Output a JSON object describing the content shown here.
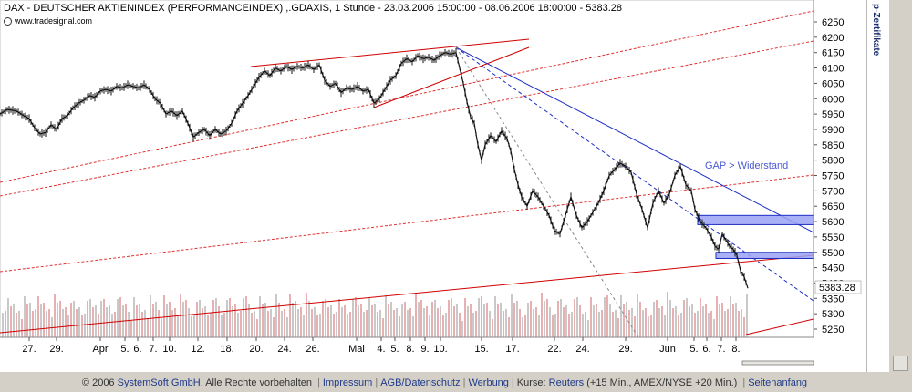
{
  "header": {
    "title": "DAX  - DEUTSCHER AKTIENINDEX (PERFORMANCEINDEX) ,.GDAXIS, 1 Stunde - 23.03.2006 15:00:00 - 08.06.2006 18:00:00 - 5383.28",
    "source": "www.tradesignal.com"
  },
  "side_panel": {
    "label": "p-Zertifikate"
  },
  "footer": {
    "copyright": "© 2006 ",
    "company": "SystemSoft GmbH",
    "rights": ". Alle Rechte vorbehalten ",
    "impressum": "Impressum",
    "agb": "AGB/Datenschutz",
    "werbung": "Werbung",
    "kurse_prefix": "Kurse: ",
    "reuters": "Reuters",
    "delay_note": " (+15 Min., AMEX/NYSE +20 Min.) ",
    "seitenanfang": "Seitenanfang",
    "separator": "|"
  },
  "chart_data": {
    "type": "line",
    "title": "DAX  - DEUTSCHER AKTIENINDEX (PERFORMANCEINDEX) ,.GDAXIS, 1 Stunde - 23.03.2006 15:00:00 - 08.06.2006 18:00:00 - 5383.28",
    "y_ticks": [
      5250,
      5300,
      5350,
      5400,
      5450,
      5500,
      5550,
      5600,
      5650,
      5700,
      5750,
      5800,
      5850,
      5900,
      5950,
      6000,
      6050,
      6100,
      6150,
      6200,
      6250
    ],
    "ylim": [
      5220,
      6290
    ],
    "x_ticks": [
      "27.",
      "29.",
      "Apr",
      "5.",
      "6.",
      "7.",
      "10.",
      "12.",
      "18.",
      "20.",
      "24.",
      "26.",
      "Mai",
      "4.",
      "5.",
      "8.",
      "9.",
      "10.",
      "15.",
      "17.",
      "22.",
      "24.",
      "29.",
      "Jun",
      "5.",
      "6.",
      "7.",
      "8."
    ],
    "last_value_label": "5383.28",
    "price_path": [
      [
        0,
        5950
      ],
      [
        8,
        5965
      ],
      [
        18,
        5960
      ],
      [
        26,
        5945
      ],
      [
        32,
        5935
      ],
      [
        38,
        5905
      ],
      [
        44,
        5885
      ],
      [
        50,
        5890
      ],
      [
        56,
        5915
      ],
      [
        62,
        5900
      ],
      [
        68,
        5935
      ],
      [
        74,
        5945
      ],
      [
        80,
        5970
      ],
      [
        86,
        5985
      ],
      [
        92,
        5995
      ],
      [
        98,
        6010
      ],
      [
        104,
        6005
      ],
      [
        110,
        6025
      ],
      [
        116,
        6030
      ],
      [
        122,
        6025
      ],
      [
        128,
        6040
      ],
      [
        134,
        6035
      ],
      [
        140,
        6045
      ],
      [
        146,
        6040
      ],
      [
        152,
        6035
      ],
      [
        158,
        6045
      ],
      [
        164,
        6030
      ],
      [
        170,
        6000
      ],
      [
        176,
        5985
      ],
      [
        182,
        5950
      ],
      [
        188,
        5960
      ],
      [
        194,
        5945
      ],
      [
        200,
        5960
      ],
      [
        206,
        5920
      ],
      [
        212,
        5875
      ],
      [
        218,
        5890
      ],
      [
        224,
        5900
      ],
      [
        230,
        5880
      ],
      [
        236,
        5900
      ],
      [
        242,
        5885
      ],
      [
        248,
        5895
      ],
      [
        254,
        5920
      ],
      [
        260,
        5960
      ],
      [
        266,
        5985
      ],
      [
        272,
        6010
      ],
      [
        278,
        6040
      ],
      [
        284,
        6070
      ],
      [
        290,
        6090
      ],
      [
        296,
        6075
      ],
      [
        302,
        6100
      ],
      [
        308,
        6090
      ],
      [
        314,
        6105
      ],
      [
        320,
        6095
      ],
      [
        326,
        6105
      ],
      [
        332,
        6100
      ],
      [
        338,
        6110
      ],
      [
        344,
        6095
      ],
      [
        350,
        6110
      ],
      [
        356,
        6060
      ],
      [
        362,
        6040
      ],
      [
        368,
        6050
      ],
      [
        374,
        6020
      ],
      [
        380,
        6035
      ],
      [
        386,
        6030
      ],
      [
        392,
        6040
      ],
      [
        398,
        6025
      ],
      [
        404,
        6030
      ],
      [
        410,
        5985
      ],
      [
        416,
        6000
      ],
      [
        422,
        6030
      ],
      [
        428,
        6060
      ],
      [
        434,
        6075
      ],
      [
        440,
        6115
      ],
      [
        446,
        6130
      ],
      [
        452,
        6120
      ],
      [
        458,
        6140
      ],
      [
        464,
        6130
      ],
      [
        470,
        6135
      ],
      [
        476,
        6125
      ],
      [
        482,
        6140
      ],
      [
        488,
        6150
      ],
      [
        494,
        6145
      ],
      [
        500,
        6150
      ],
      [
        504,
        6100
      ],
      [
        508,
        6050
      ],
      [
        512,
        5990
      ],
      [
        516,
        5940
      ],
      [
        520,
        5920
      ],
      [
        524,
        5850
      ],
      [
        528,
        5800
      ],
      [
        532,
        5850
      ],
      [
        538,
        5880
      ],
      [
        544,
        5860
      ],
      [
        550,
        5895
      ],
      [
        556,
        5870
      ],
      [
        560,
        5830
      ],
      [
        564,
        5770
      ],
      [
        568,
        5720
      ],
      [
        572,
        5680
      ],
      [
        578,
        5650
      ],
      [
        584,
        5700
      ],
      [
        590,
        5680
      ],
      [
        596,
        5650
      ],
      [
        602,
        5620
      ],
      [
        608,
        5570
      ],
      [
        614,
        5560
      ],
      [
        620,
        5620
      ],
      [
        626,
        5680
      ],
      [
        632,
        5620
      ],
      [
        638,
        5580
      ],
      [
        644,
        5600
      ],
      [
        650,
        5630
      ],
      [
        656,
        5660
      ],
      [
        662,
        5700
      ],
      [
        668,
        5750
      ],
      [
        674,
        5770
      ],
      [
        680,
        5790
      ],
      [
        686,
        5780
      ],
      [
        692,
        5760
      ],
      [
        698,
        5690
      ],
      [
        704,
        5640
      ],
      [
        710,
        5580
      ],
      [
        716,
        5660
      ],
      [
        722,
        5700
      ],
      [
        728,
        5660
      ],
      [
        734,
        5690
      ],
      [
        740,
        5750
      ],
      [
        746,
        5780
      ],
      [
        752,
        5720
      ],
      [
        758,
        5700
      ],
      [
        762,
        5640
      ],
      [
        768,
        5600
      ],
      [
        774,
        5580
      ],
      [
        780,
        5550
      ],
      [
        784,
        5520
      ],
      [
        788,
        5510
      ],
      [
        792,
        5560
      ],
      [
        796,
        5540
      ],
      [
        800,
        5520
      ],
      [
        804,
        5510
      ],
      [
        808,
        5490
      ],
      [
        812,
        5440
      ],
      [
        816,
        5420
      ],
      [
        820,
        5383
      ]
    ],
    "annotations": {
      "gap_label": "GAP > Widerstand",
      "resistance_zones": [
        [
          5590,
          5620
        ],
        [
          5480,
          5500
        ]
      ]
    },
    "volume_bars": "shown"
  }
}
